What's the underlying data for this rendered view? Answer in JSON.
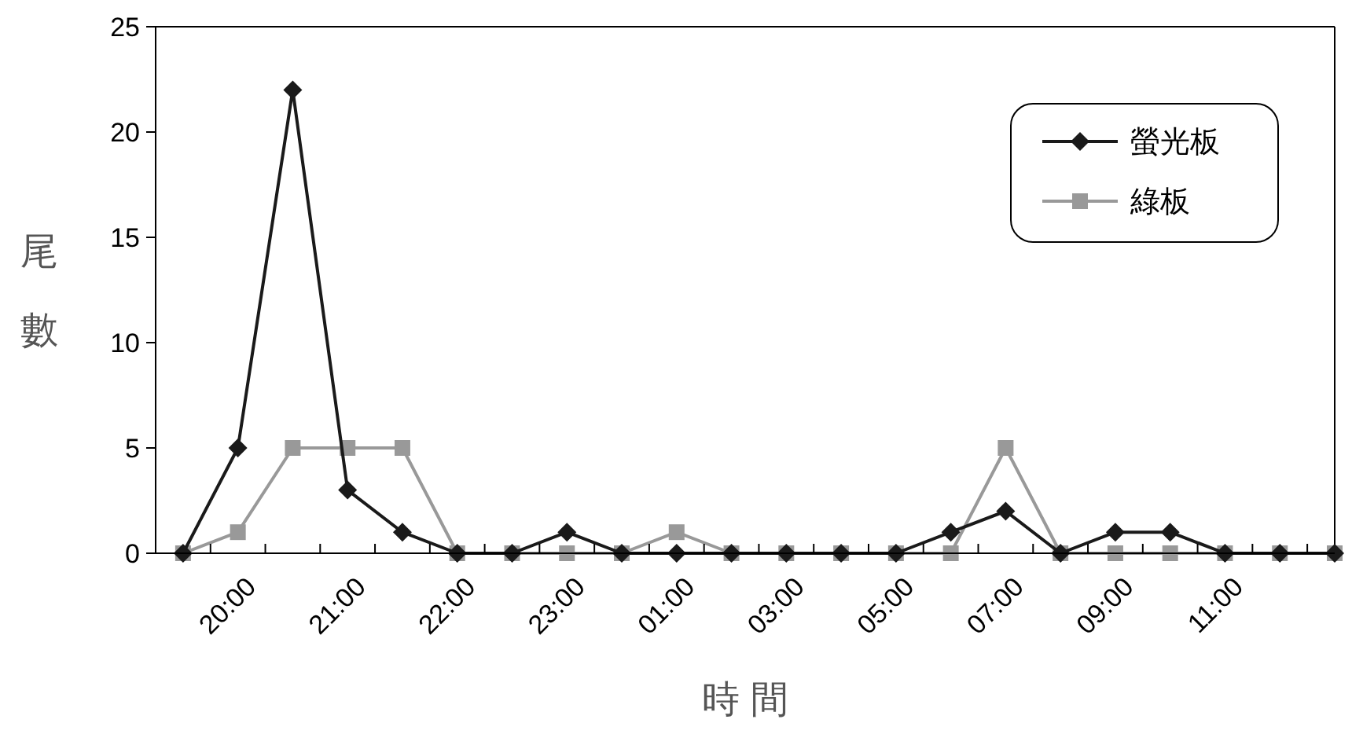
{
  "chart_data": {
    "type": "line",
    "xlabel": "時 間",
    "ylabel": "尾數",
    "categories": [
      null,
      "20:00",
      null,
      "21:00",
      null,
      "22:00",
      null,
      "23:00",
      null,
      "01:00",
      null,
      "03:00",
      null,
      "05:00",
      null,
      "07:00",
      null,
      "09:00",
      null,
      "11:00",
      null,
      null
    ],
    "series": [
      {
        "name": "螢光板",
        "color": "#1a1a1a",
        "marker": "diamond",
        "values": [
          0,
          5,
          22,
          3,
          1,
          0,
          0,
          1,
          0,
          0,
          0,
          0,
          0,
          0,
          1,
          2,
          0,
          1,
          1,
          0,
          0,
          0
        ]
      },
      {
        "name": "綠板",
        "color": "#999999",
        "marker": "square",
        "values": [
          0,
          1,
          5,
          5,
          5,
          0,
          0,
          0,
          0,
          1,
          0,
          0,
          0,
          0,
          0,
          5,
          0,
          0,
          0,
          0,
          0,
          0
        ]
      }
    ],
    "ylim": [
      0,
      25
    ],
    "yticks": [
      0,
      5,
      10,
      15,
      20,
      25
    ],
    "legend": "top right",
    "grid": false
  }
}
